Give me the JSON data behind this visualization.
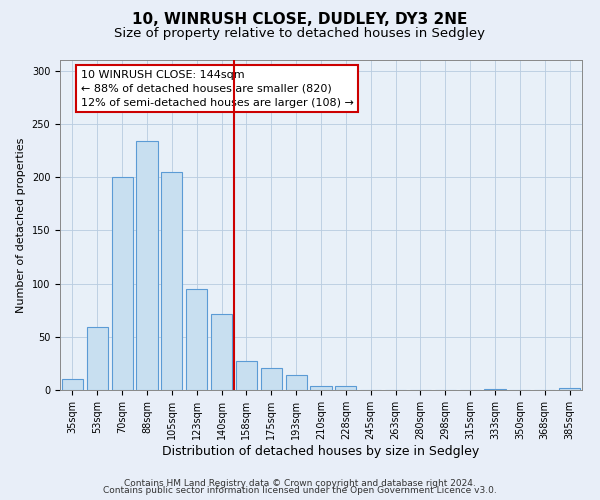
{
  "title": "10, WINRUSH CLOSE, DUDLEY, DY3 2NE",
  "subtitle": "Size of property relative to detached houses in Sedgley",
  "xlabel": "Distribution of detached houses by size in Sedgley",
  "ylabel": "Number of detached properties",
  "bar_labels": [
    "35sqm",
    "53sqm",
    "70sqm",
    "88sqm",
    "105sqm",
    "123sqm",
    "140sqm",
    "158sqm",
    "175sqm",
    "193sqm",
    "210sqm",
    "228sqm",
    "245sqm",
    "263sqm",
    "280sqm",
    "298sqm",
    "315sqm",
    "333sqm",
    "350sqm",
    "368sqm",
    "385sqm"
  ],
  "bar_values": [
    10,
    59,
    200,
    234,
    205,
    95,
    71,
    27,
    21,
    14,
    4,
    4,
    0,
    0,
    0,
    0,
    0,
    1,
    0,
    0,
    2
  ],
  "bar_color": "#c8dff0",
  "bar_edge_color": "#5b9bd5",
  "vline_x_index": 6,
  "vline_color": "#cc0000",
  "annotation_text": "10 WINRUSH CLOSE: 144sqm\n← 88% of detached houses are smaller (820)\n12% of semi-detached houses are larger (108) →",
  "annotation_box_color": "#ffffff",
  "annotation_box_edge_color": "#cc0000",
  "ylim": [
    0,
    310
  ],
  "yticks": [
    0,
    50,
    100,
    150,
    200,
    250,
    300
  ],
  "footer_line1": "Contains HM Land Registry data © Crown copyright and database right 2024.",
  "footer_line2": "Contains public sector information licensed under the Open Government Licence v3.0.",
  "background_color": "#e8eef8",
  "plot_bg_color": "#e8f0f8",
  "title_fontsize": 11,
  "subtitle_fontsize": 9.5,
  "xlabel_fontsize": 9,
  "ylabel_fontsize": 8,
  "tick_fontsize": 7,
  "annotation_fontsize": 8,
  "footer_fontsize": 6.5
}
